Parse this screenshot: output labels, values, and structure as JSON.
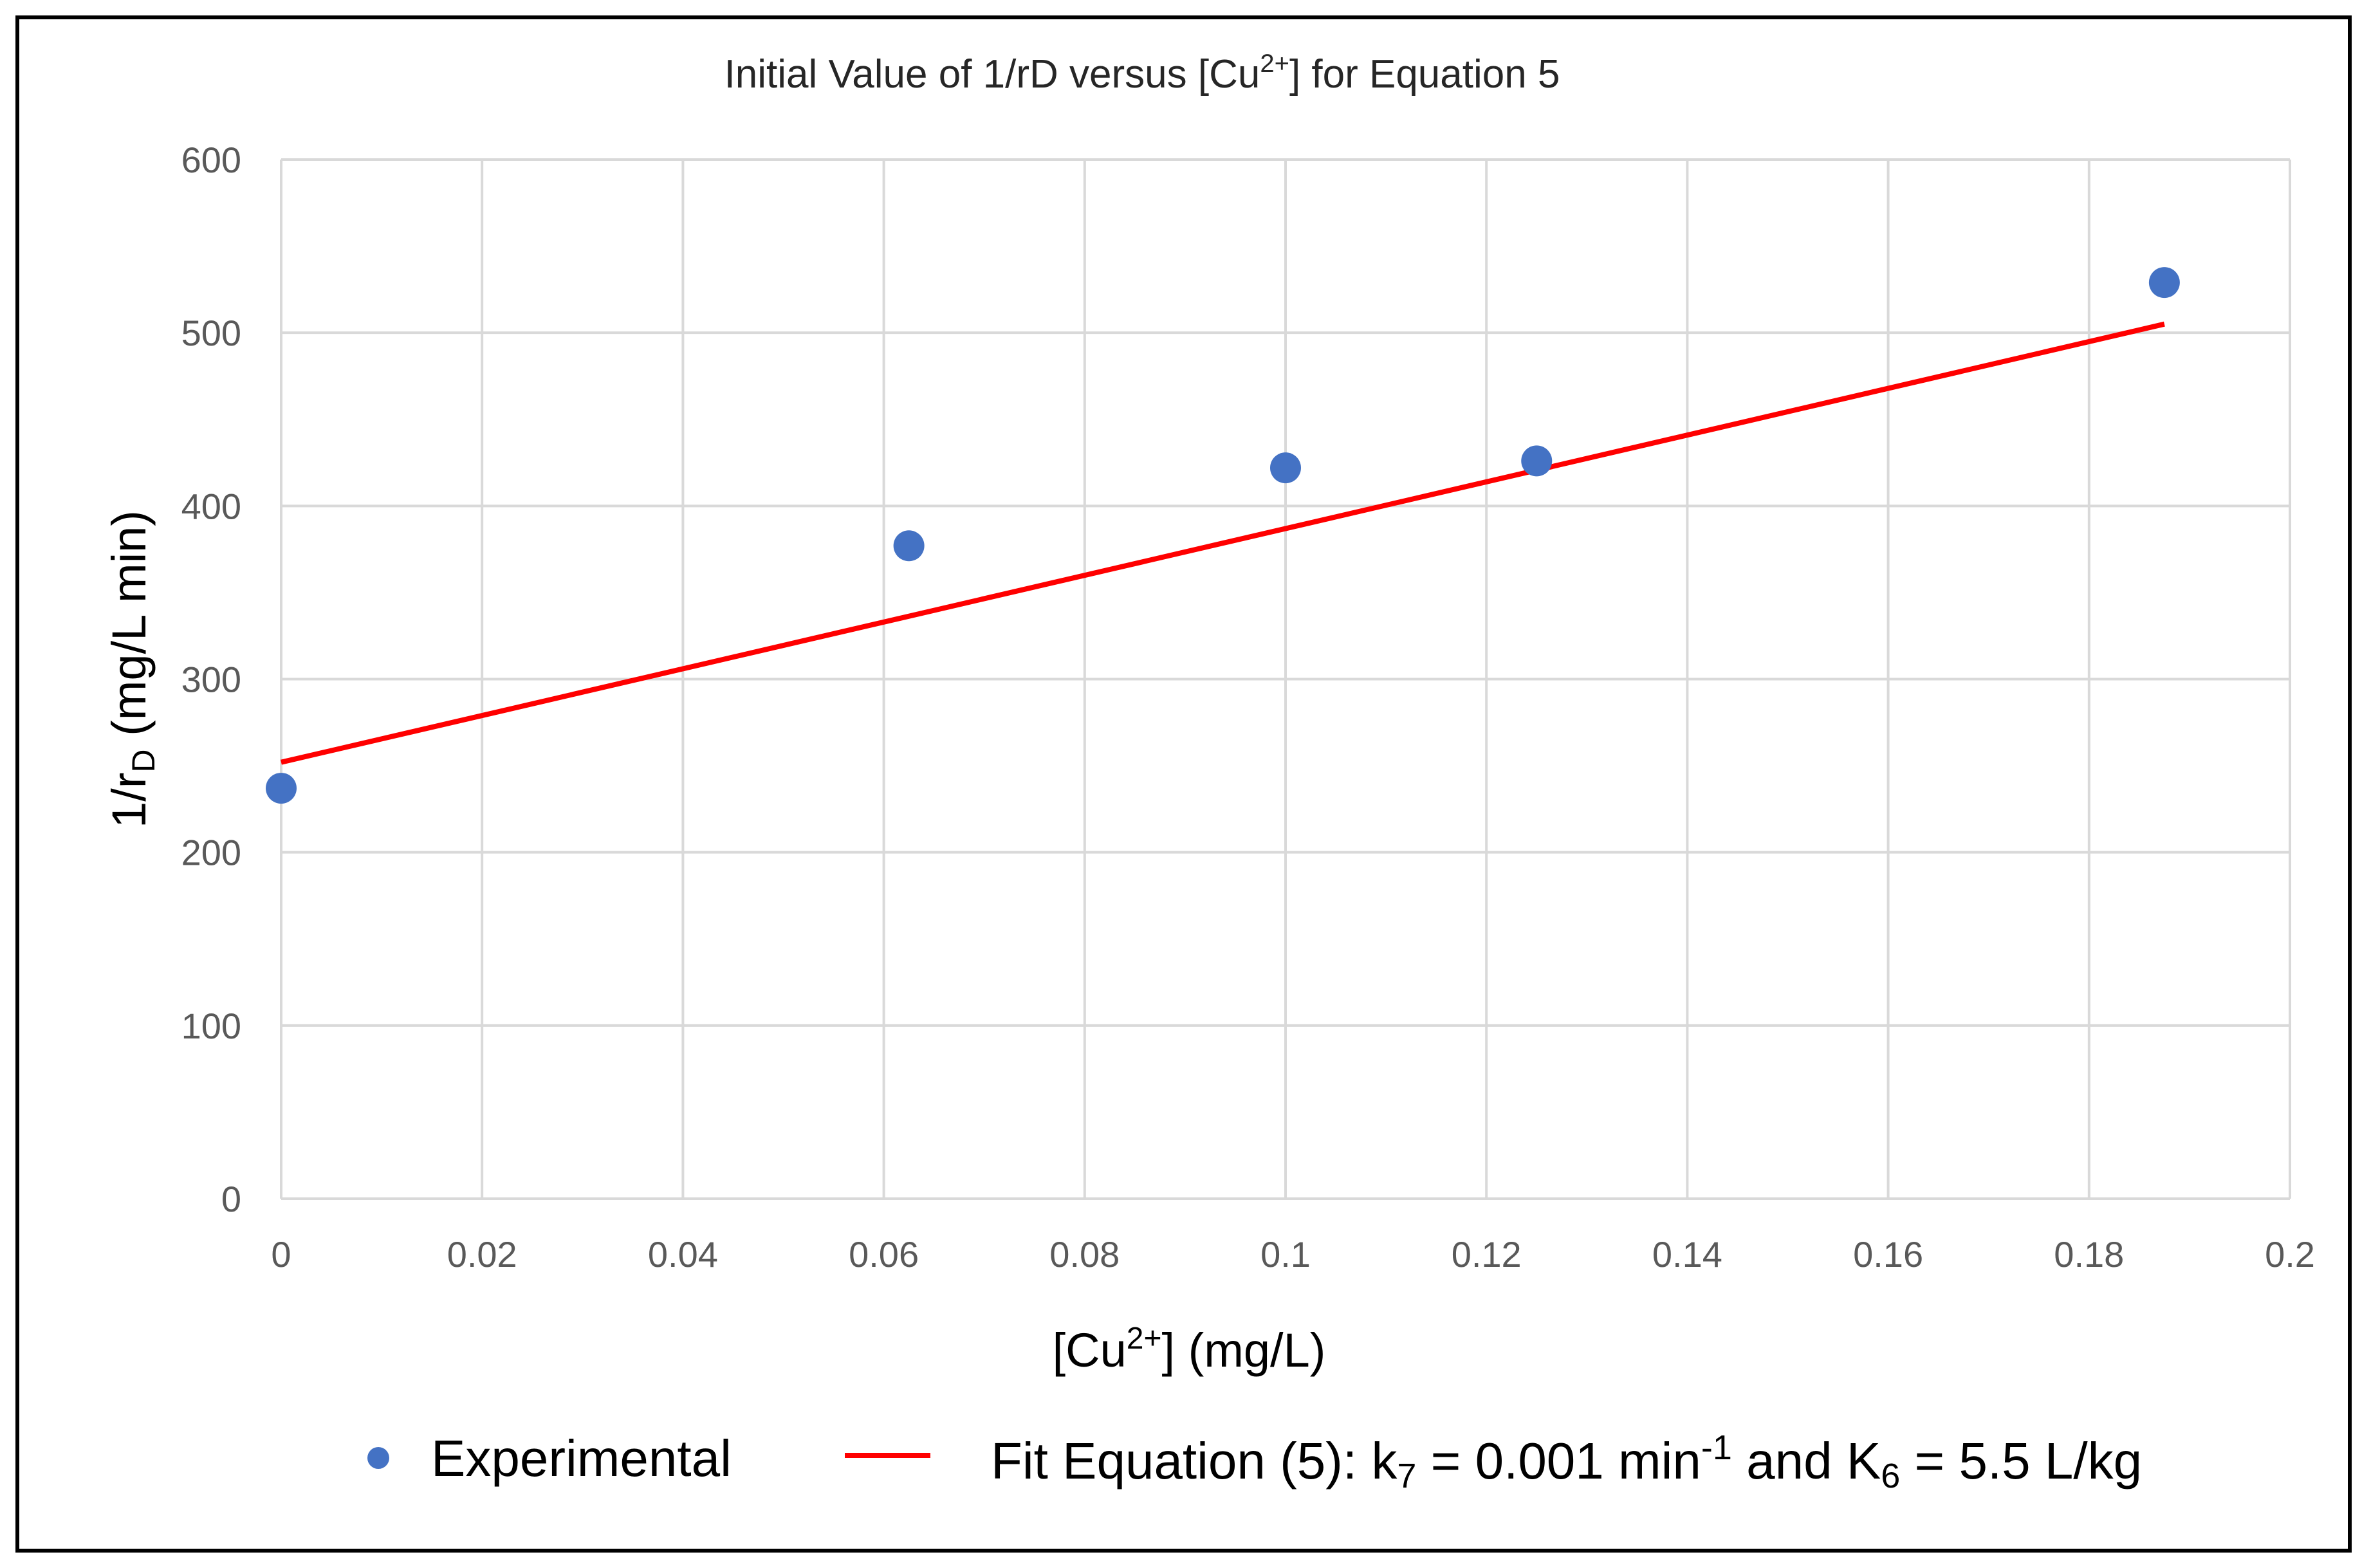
{
  "chart_data": {
    "type": "scatter",
    "title_main": "Initial Value of 1/rD versus [Cu",
    "title_sup": "2+",
    "title_end": "] for Equation 5",
    "xlabel_main": "[Cu",
    "xlabel_sup": "2+",
    "xlabel_end": "] (mg/L)",
    "ylabel_main": "1/r",
    "ylabel_sub": "D",
    "ylabel_end": " (mg/L min)",
    "xlim": [
      0,
      0.2
    ],
    "ylim": [
      0,
      600
    ],
    "x_ticks": [
      "0",
      "0.02",
      "0.04",
      "0.06",
      "0.08",
      "0.1",
      "0.12",
      "0.14",
      "0.16",
      "0.18",
      "0.2"
    ],
    "y_ticks": [
      "0",
      "100",
      "200",
      "300",
      "400",
      "500",
      "600"
    ],
    "grid": true,
    "legend_position": "bottom",
    "series": [
      {
        "name": "Experimental",
        "kind": "scatter",
        "color": "#4472c4",
        "points": [
          {
            "x": 0.0,
            "y": 237
          },
          {
            "x": 0.0625,
            "y": 377
          },
          {
            "x": 0.1,
            "y": 422
          },
          {
            "x": 0.125,
            "y": 426
          },
          {
            "x": 0.1875,
            "y": 529
          }
        ]
      },
      {
        "kind": "line",
        "color": "#ff0000",
        "points": [
          {
            "x": 0.0,
            "y": 252
          },
          {
            "x": 0.1875,
            "y": 505
          }
        ]
      }
    ],
    "legend": {
      "experimental": "Experimental",
      "fit_part1": "Fit Equation (5): k",
      "fit_sub1": "7",
      "fit_part2": " = 0.001 min",
      "fit_sup": "-1",
      "fit_part3": " and K",
      "fit_sub2": "6",
      "fit_part4": " = 5.5 L/kg"
    }
  }
}
